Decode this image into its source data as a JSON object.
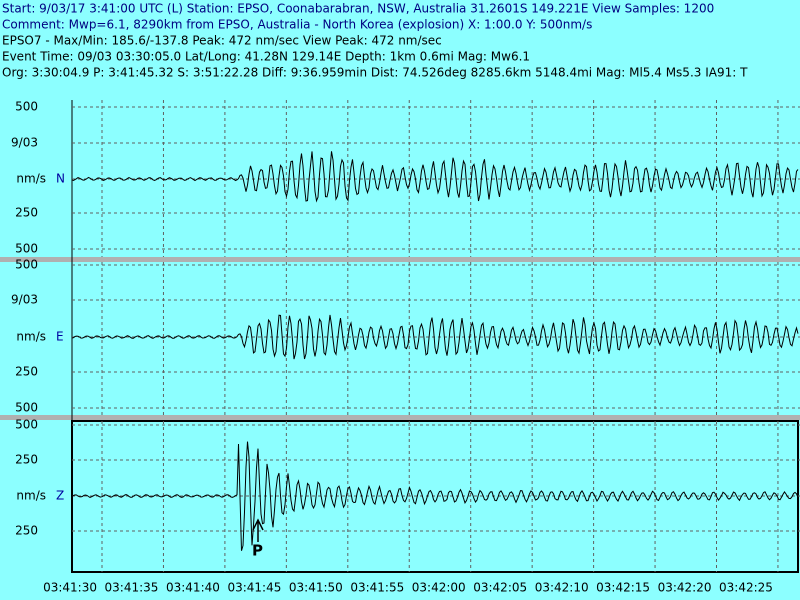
{
  "header": {
    "lines": [
      "Start: 9/03/17  3:41:00 UTC (L) Station: EPSO, Coonabarabran, NSW, Australia 31.2601S 149.221E View Samples: 1200",
      "Comment: Mwp=6.1, 8290km from EPSO, Australia - North Korea (explosion)   X: 1:00.0 Y: 500nm/s",
      "EPSO7 - Max/Min: 185.6/-137.8  Peak:  472 nm/sec  View Peak:   472 nm/sec",
      "Event Time: 09/03 03:30:05.0 Lat/Long: 41.28N 129.14E Depth: 1km 0.6mi Mag: Mw6.1",
      "Org: 3:30:04.9 P: 3:41:45.32 S: 3:51:22.28 Diff: 9:36.959min Dist: 74.526deg 8285.6km 5148.4mi  Mag: Ml5.4 Ms5.3 IA91: T"
    ]
  },
  "panels": [
    {
      "labels": [
        "500",
        "9/03",
        "nm/s",
        "250",
        "500"
      ],
      "channel": "N"
    },
    {
      "labels": [
        "500",
        "9/03",
        "nm/s",
        "250",
        "500"
      ],
      "channel": "E"
    },
    {
      "labels": [
        "500",
        "250",
        "nm/s",
        "250"
      ],
      "channel": "Z",
      "marker": "P"
    }
  ],
  "time_axis": [
    "03:41:30",
    "03:41:35",
    "03:41:40",
    "03:41:45",
    "03:41:50",
    "03:41:55",
    "03:42:00",
    "03:42:05",
    "03:42:10",
    "03:42:15",
    "03:42:20",
    "03:42:25"
  ]
}
